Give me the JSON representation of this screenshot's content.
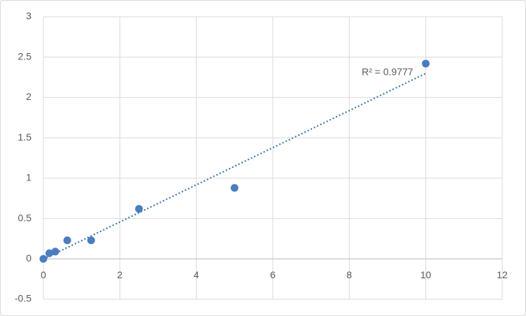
{
  "chart_data": {
    "type": "scatter",
    "series": [
      {
        "color": "#4a7dbf",
        "x": [
          0,
          0.156,
          0.3125,
          0.625,
          1.25,
          2.5,
          5,
          10
        ],
        "values": [
          0,
          0.07,
          0.09,
          0.23,
          0.23,
          0.62,
          0.88,
          2.42
        ]
      }
    ],
    "trendline": {
      "type": "linear",
      "color": "#3f78b8",
      "label": "R² = 0.9777"
    },
    "xlim": [
      0,
      12
    ],
    "xticks": [
      0,
      2,
      4,
      6,
      8,
      10,
      12
    ],
    "ylim": [
      -0.5,
      3
    ],
    "yticks": [
      -0.5,
      0,
      0.5,
      1,
      1.5,
      2,
      2.5,
      3
    ],
    "grid": true
  }
}
